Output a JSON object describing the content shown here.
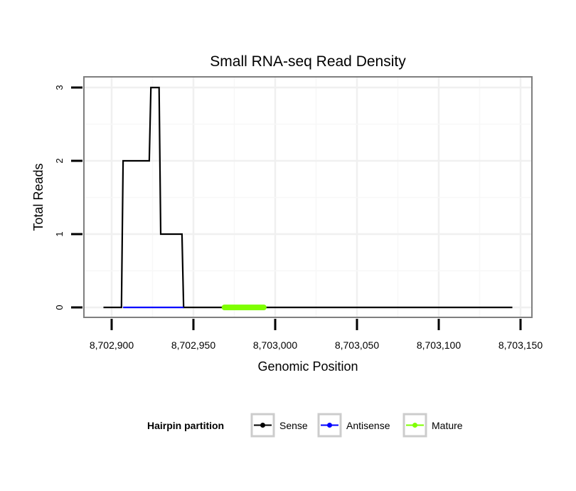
{
  "chart_data": {
    "type": "line",
    "title": "Small RNA-seq Read Density",
    "xlabel": "Genomic Position",
    "ylabel": "Total Reads",
    "xlim": [
      8702883,
      8703157
    ],
    "ylim": [
      -0.13,
      3.15
    ],
    "x_ticks": [
      8702900,
      8702950,
      8703000,
      8703050,
      8703100,
      8703150
    ],
    "x_tick_labels": [
      "8,702,900",
      "8,702,950",
      "8,703,000",
      "8,703,050",
      "8,703,100",
      "8,703,150"
    ],
    "y_ticks": [
      0,
      1,
      2,
      3
    ],
    "y_tick_labels": [
      "0",
      "1",
      "2",
      "3"
    ],
    "grid": true,
    "legend": {
      "title": "Hairpin partition",
      "placement": "bottom"
    },
    "series": [
      {
        "name": "Sense",
        "color": "#000000",
        "x": [
          8702895,
          8702906,
          8702907,
          8702923,
          8702924,
          8702929,
          8702930,
          8702943,
          8702944,
          8703145
        ],
        "y": [
          0,
          0,
          2,
          2,
          3,
          3,
          1,
          1,
          0,
          0
        ]
      },
      {
        "name": "Antisense",
        "color": "#0000ff",
        "x": [
          8702907,
          8702944
        ],
        "y": [
          0,
          0
        ]
      },
      {
        "name": "Mature",
        "color": "#7fff00",
        "x": [
          8702969,
          8702993
        ],
        "y": [
          0,
          0
        ]
      }
    ]
  }
}
